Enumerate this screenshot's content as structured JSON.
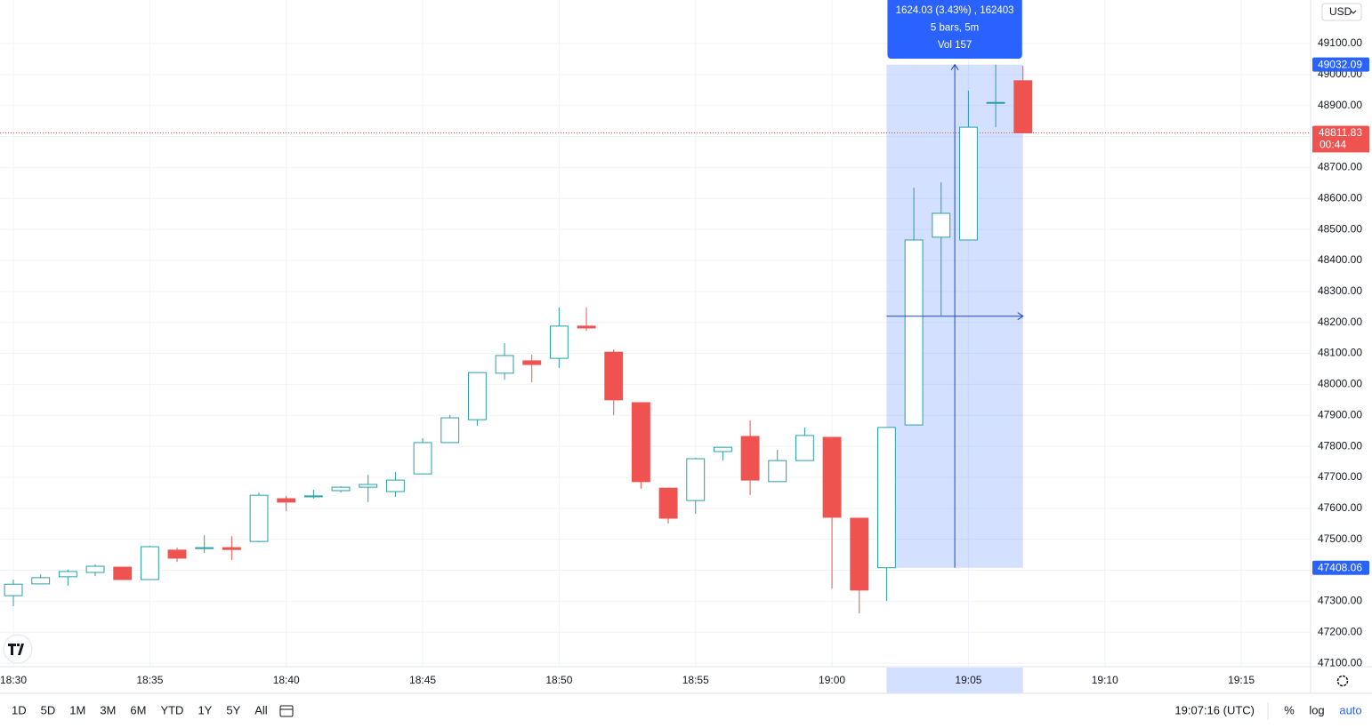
{
  "chart_data": {
    "type": "candlestick",
    "open": [
      47318,
      47356,
      47379,
      47393,
      47410,
      47370,
      47465,
      47470,
      47473,
      47493,
      47631,
      47637,
      47657,
      47668,
      47654,
      47711,
      47812,
      47886,
      48036,
      48076,
      48084,
      48188,
      48104,
      47941,
      47665,
      47625,
      47783,
      47832,
      47686,
      47754,
      47829,
      47568,
      47408.06,
      47869,
      48475,
      48466,
      48908,
      48980
    ],
    "high": [
      47370,
      47387,
      47402,
      47419,
      47410,
      47479,
      47473,
      47513,
      47510,
      47651,
      47640,
      47660,
      47671,
      47708,
      47717,
      47826,
      47901,
      48038,
      48133,
      48096,
      48248,
      48248,
      48113,
      47941,
      47665,
      47763,
      47797,
      47884,
      47789,
      47861,
      47829,
      47568,
      47861,
      48635,
      48652,
      48948,
      49032.09,
      49028
    ],
    "low": [
      47284,
      47356,
      47350,
      47381,
      47370,
      47370,
      47427,
      47456,
      47433,
      47490,
      47591,
      47631,
      47651,
      47620,
      47637,
      47711,
      47812,
      47866,
      48015,
      48007,
      48053,
      48173,
      47901,
      47663,
      47551,
      47582,
      47754,
      47643,
      47686,
      47754,
      47341,
      47261,
      47301,
      47869,
      48222,
      48466,
      48830,
      48811.83
    ],
    "close": [
      47355,
      47376,
      47396,
      47413,
      47370,
      47476,
      47439,
      47473,
      47467,
      47642,
      47620,
      47640,
      47668,
      47677,
      47691,
      47812,
      47892,
      48038,
      48093,
      48064,
      48188,
      48182,
      47950,
      47686,
      47568,
      47760,
      47797,
      47691,
      47754,
      47835,
      47571,
      47336,
      47861,
      48466,
      48552,
      48830,
      48910,
      48811.83
    ],
    "up_color": "#26a0a7",
    "down_color": "#ef5350",
    "ylim": [
      47088.8,
      49240.6
    ],
    "yticks": [
      {
        "value": 47100,
        "label": "47100.00"
      },
      {
        "value": 47200,
        "label": "47200.00"
      },
      {
        "value": 47300,
        "label": "47300.00"
      },
      {
        "value": 47400,
        "label": "47400.00"
      },
      {
        "value": 47500,
        "label": "47500.00"
      },
      {
        "value": 47600,
        "label": "47600.00"
      },
      {
        "value": 47700,
        "label": "47700.00"
      },
      {
        "value": 47800,
        "label": "47800.00"
      },
      {
        "value": 47900,
        "label": "47900.00"
      },
      {
        "value": 48000,
        "label": "48000.00"
      },
      {
        "value": 48100,
        "label": "48100.00"
      },
      {
        "value": 48200,
        "label": "48200.00"
      },
      {
        "value": 48300,
        "label": "48300.00"
      },
      {
        "value": 48400,
        "label": "48400.00"
      },
      {
        "value": 48500,
        "label": "48500.00"
      },
      {
        "value": 48600,
        "label": "48600.00"
      },
      {
        "value": 48700,
        "label": "48700.00"
      },
      {
        "value": 48800,
        "label": "48800.00"
      },
      {
        "value": 48900,
        "label": "48900.00"
      },
      {
        "value": 49000,
        "label": "49000.00"
      },
      {
        "value": 49100,
        "label": "49100.00"
      }
    ],
    "xlim": [
      -0.49,
      47.54
    ],
    "xticks": [
      {
        "value": 0,
        "label": "18:30"
      },
      {
        "value": 5,
        "label": "18:35"
      },
      {
        "value": 10,
        "label": "18:40"
      },
      {
        "value": 15,
        "label": "18:45"
      },
      {
        "value": 20,
        "label": "18:50"
      },
      {
        "value": 25,
        "label": "18:55"
      },
      {
        "value": 30,
        "label": "19:00"
      },
      {
        "value": 35,
        "label": "19:05"
      },
      {
        "value": 40,
        "label": "19:10"
      },
      {
        "value": 45,
        "label": "19:15"
      }
    ],
    "grid": true,
    "price_labels": [
      {
        "value": 49032.09,
        "color": "#2962ff"
      },
      {
        "value": 48811.83,
        "color": "#ef5350"
      },
      {
        "value": 47408.06,
        "color": "#2962ff"
      }
    ],
    "countdown": "00:44",
    "measure": {
      "x_from": 32,
      "x_to": 37,
      "from": 47408.06,
      "to": 49032.09,
      "lines": [
        "1624.03 (3.43%) , 162403",
        "5 bars, 5m",
        "Vol 157"
      ]
    },
    "currency": "USD",
    "periods": [
      "1D",
      "5D",
      "1M",
      "3M",
      "6M",
      "YTD",
      "1Y",
      "5Y",
      "All"
    ],
    "time": "19:07:16 (UTC)",
    "options": [
      "%",
      "log",
      "auto"
    ]
  }
}
